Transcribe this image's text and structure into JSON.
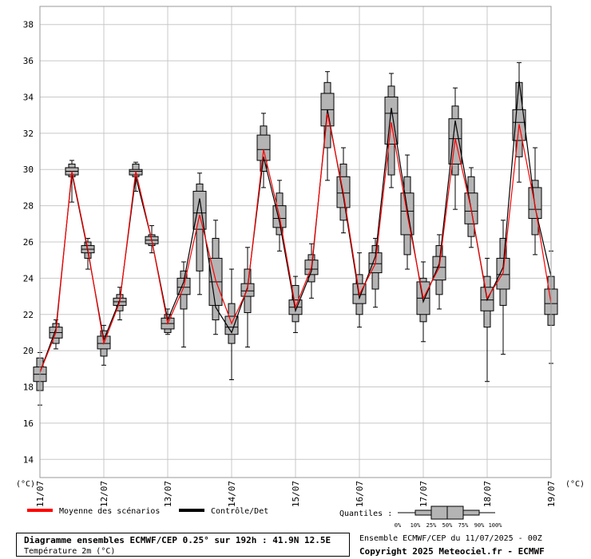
{
  "chart_data": {
    "type": "box",
    "title": "Diagramme ensembles ECMWF/CEP 0.25° sur 192h : 41.9N 12.5E",
    "subtitle": "Température 2m (°C)",
    "y_unit_label": "(°C)",
    "ylim": [
      13,
      39
    ],
    "yticks": [
      14,
      16,
      18,
      20,
      22,
      24,
      26,
      28,
      30,
      32,
      34,
      36,
      38
    ],
    "xlim": [
      0,
      8
    ],
    "x_tick_labels": [
      {
        "x": 0,
        "label": "11/07"
      },
      {
        "x": 1,
        "label": "12/07"
      },
      {
        "x": 2,
        "label": "13/07"
      },
      {
        "x": 3,
        "label": "14/07"
      },
      {
        "x": 4,
        "label": "15/07"
      },
      {
        "x": 5,
        "label": "16/07"
      },
      {
        "x": 6,
        "label": "17/07"
      },
      {
        "x": 7,
        "label": "18/07"
      },
      {
        "x": 8,
        "label": "19/07"
      }
    ],
    "grid": true,
    "legend": [
      {
        "name": "Moyenne des scénarios",
        "color": "#ff0000"
      },
      {
        "name": "Contrôle/Det",
        "color": "#000000"
      }
    ],
    "quantiles_label": "Quantiles :",
    "quantile_names": [
      "0%",
      "10%",
      "25%",
      "50%",
      "75%",
      "90%",
      "100%"
    ],
    "boxes": [
      {
        "x": 0.0,
        "q0": 17.0,
        "q10": 17.8,
        "q25": 18.3,
        "q50": 18.7,
        "q75": 19.1,
        "q90": 19.6,
        "q100": 19.9
      },
      {
        "x": 0.25,
        "q0": 20.1,
        "q10": 20.4,
        "q25": 20.7,
        "q50": 21.0,
        "q75": 21.3,
        "q90": 21.5,
        "q100": 21.7
      },
      {
        "x": 0.5,
        "q0": 28.2,
        "q10": 29.6,
        "q25": 29.7,
        "q50": 29.9,
        "q75": 30.1,
        "q90": 30.3,
        "q100": 30.5
      },
      {
        "x": 0.75,
        "q0": 24.5,
        "q10": 25.1,
        "q25": 25.4,
        "q50": 25.6,
        "q75": 25.8,
        "q90": 26.0,
        "q100": 26.2
      },
      {
        "x": 1.0,
        "q0": 19.2,
        "q10": 19.7,
        "q25": 20.1,
        "q50": 20.4,
        "q75": 20.8,
        "q90": 21.1,
        "q100": 21.4
      },
      {
        "x": 1.25,
        "q0": 21.7,
        "q10": 22.2,
        "q25": 22.5,
        "q50": 22.7,
        "q75": 22.9,
        "q90": 23.1,
        "q100": 23.5
      },
      {
        "x": 1.5,
        "q0": 28.8,
        "q10": 29.6,
        "q25": 29.7,
        "q50": 29.9,
        "q75": 30.0,
        "q90": 30.3,
        "q100": 30.4
      },
      {
        "x": 1.75,
        "q0": 25.4,
        "q10": 25.8,
        "q25": 25.9,
        "q50": 26.1,
        "q75": 26.3,
        "q90": 26.4,
        "q100": 26.9
      },
      {
        "x": 2.0,
        "q0": 20.9,
        "q10": 21.0,
        "q25": 21.2,
        "q50": 21.5,
        "q75": 21.8,
        "q90": 22.0,
        "q100": 22.3
      },
      {
        "x": 2.25,
        "q0": 20.2,
        "q10": 22.3,
        "q25": 23.1,
        "q50": 23.5,
        "q75": 24.0,
        "q90": 24.4,
        "q100": 24.9
      },
      {
        "x": 2.5,
        "q0": 23.1,
        "q10": 24.4,
        "q25": 26.7,
        "q50": 27.6,
        "q75": 28.8,
        "q90": 29.2,
        "q100": 29.8
      },
      {
        "x": 2.75,
        "q0": 20.9,
        "q10": 21.7,
        "q25": 22.5,
        "q50": 23.8,
        "q75": 25.1,
        "q90": 26.2,
        "q100": 27.2
      },
      {
        "x": 3.0,
        "q0": 18.4,
        "q10": 20.4,
        "q25": 20.9,
        "q50": 21.3,
        "q75": 21.9,
        "q90": 22.6,
        "q100": 24.5
      },
      {
        "x": 3.25,
        "q0": 20.2,
        "q10": 22.1,
        "q25": 23.0,
        "q50": 23.3,
        "q75": 23.7,
        "q90": 24.5,
        "q100": 25.7
      },
      {
        "x": 3.5,
        "q0": 29.0,
        "q10": 29.9,
        "q25": 30.5,
        "q50": 31.1,
        "q75": 31.9,
        "q90": 32.4,
        "q100": 33.1
      },
      {
        "x": 3.75,
        "q0": 25.5,
        "q10": 26.4,
        "q25": 26.8,
        "q50": 27.3,
        "q75": 28.0,
        "q90": 28.7,
        "q100": 29.4
      },
      {
        "x": 4.0,
        "q0": 21.0,
        "q10": 21.6,
        "q25": 22.0,
        "q50": 22.4,
        "q75": 22.8,
        "q90": 23.6,
        "q100": 24.1
      },
      {
        "x": 4.25,
        "q0": 22.9,
        "q10": 23.8,
        "q25": 24.2,
        "q50": 24.5,
        "q75": 25.0,
        "q90": 25.3,
        "q100": 25.9
      },
      {
        "x": 4.5,
        "q0": 29.4,
        "q10": 31.2,
        "q25": 32.4,
        "q50": 33.3,
        "q75": 34.2,
        "q90": 34.8,
        "q100": 35.4
      },
      {
        "x": 4.75,
        "q0": 26.5,
        "q10": 27.2,
        "q25": 27.9,
        "q50": 28.7,
        "q75": 29.6,
        "q90": 30.3,
        "q100": 31.2
      },
      {
        "x": 5.0,
        "q0": 21.3,
        "q10": 22.0,
        "q25": 22.6,
        "q50": 23.1,
        "q75": 23.7,
        "q90": 24.2,
        "q100": 25.4
      },
      {
        "x": 5.25,
        "q0": 22.4,
        "q10": 23.4,
        "q25": 24.3,
        "q50": 24.8,
        "q75": 25.4,
        "q90": 25.8,
        "q100": 26.2
      },
      {
        "x": 5.5,
        "q0": 29.0,
        "q10": 29.7,
        "q25": 31.4,
        "q50": 33.1,
        "q75": 34.0,
        "q90": 34.6,
        "q100": 35.3
      },
      {
        "x": 5.75,
        "q0": 24.5,
        "q10": 25.3,
        "q25": 26.4,
        "q50": 27.7,
        "q75": 28.7,
        "q90": 29.6,
        "q100": 30.8
      },
      {
        "x": 6.0,
        "q0": 20.5,
        "q10": 21.6,
        "q25": 22.0,
        "q50": 22.9,
        "q75": 23.8,
        "q90": 24.0,
        "q100": 24.9
      },
      {
        "x": 6.25,
        "q0": 22.3,
        "q10": 23.1,
        "q25": 23.9,
        "q50": 24.6,
        "q75": 25.2,
        "q90": 25.8,
        "q100": 26.4
      },
      {
        "x": 6.5,
        "q0": 27.8,
        "q10": 29.7,
        "q25": 30.3,
        "q50": 31.7,
        "q75": 32.8,
        "q90": 33.5,
        "q100": 34.5
      },
      {
        "x": 6.75,
        "q0": 25.7,
        "q10": 26.3,
        "q25": 27.0,
        "q50": 27.7,
        "q75": 28.7,
        "q90": 29.6,
        "q100": 30.1
      },
      {
        "x": 7.0,
        "q0": 18.3,
        "q10": 21.3,
        "q25": 22.2,
        "q50": 22.8,
        "q75": 23.5,
        "q90": 24.1,
        "q100": 25.1
      },
      {
        "x": 7.25,
        "q0": 19.8,
        "q10": 22.5,
        "q25": 23.4,
        "q50": 24.2,
        "q75": 25.1,
        "q90": 26.2,
        "q100": 27.2
      },
      {
        "x": 7.5,
        "q0": 29.3,
        "q10": 30.7,
        "q25": 31.6,
        "q50": 32.6,
        "q75": 33.3,
        "q90": 34.8,
        "q100": 35.9
      },
      {
        "x": 7.75,
        "q0": 25.3,
        "q10": 26.4,
        "q25": 27.3,
        "q50": 27.8,
        "q75": 29.0,
        "q90": 29.4,
        "q100": 31.2
      },
      {
        "x": 8.0,
        "q0": 19.3,
        "q10": 21.4,
        "q25": 22.0,
        "q50": 22.6,
        "q75": 23.4,
        "q90": 24.1,
        "q100": 25.5
      }
    ],
    "series": [
      {
        "name": "Moyenne des scénarios",
        "color": "#ff0000",
        "values": [
          18.8,
          21.0,
          29.9,
          25.6,
          20.4,
          22.7,
          29.9,
          26.1,
          21.5,
          23.5,
          27.5,
          23.9,
          21.5,
          23.4,
          31.1,
          27.4,
          22.4,
          24.6,
          33.1,
          28.7,
          23.1,
          24.8,
          32.6,
          27.5,
          22.9,
          24.6,
          31.7,
          27.8,
          22.9,
          24.3,
          32.5,
          28.0,
          22.6
        ]
      },
      {
        "name": "Contrôle/Det",
        "color": "#000000",
        "values": [
          18.8,
          21.2,
          29.8,
          25.5,
          20.6,
          22.8,
          29.6,
          26.1,
          21.7,
          23.8,
          28.4,
          22.4,
          21.0,
          23.5,
          30.7,
          27.1,
          22.2,
          24.4,
          33.3,
          28.5,
          22.9,
          25.2,
          33.4,
          27.8,
          22.7,
          24.8,
          32.7,
          27.8,
          22.8,
          24.6,
          34.9,
          27.9,
          24.1
        ]
      }
    ]
  },
  "footer": {
    "title": "Diagramme ensembles ECMWF/CEP 0.25° sur 192h : 41.9N 12.5E",
    "subtitle": "Température 2m (°C)",
    "run": "Ensemble ECMWF/CEP du 11/07/2025 - 00Z",
    "copyright": "Copyright 2025 Meteociel.fr - ECMWF"
  }
}
